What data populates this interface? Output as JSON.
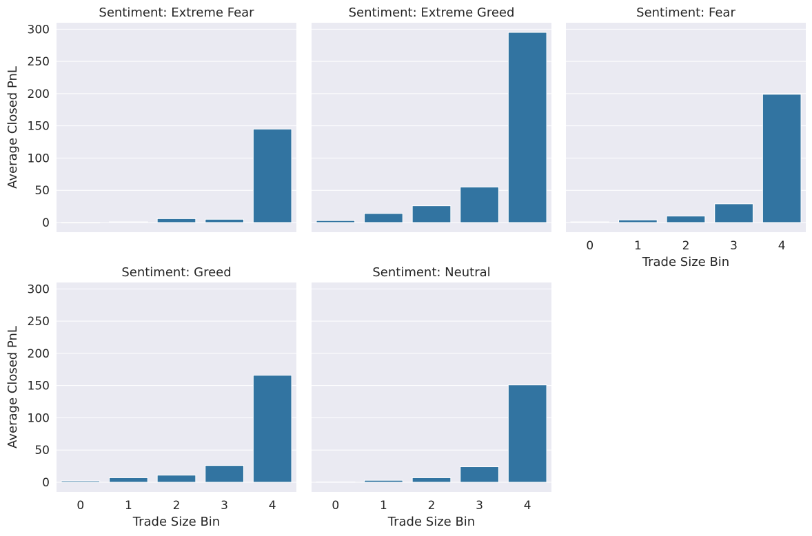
{
  "chart_data": {
    "type": "bar",
    "shared_y_axis_label": "Average Closed PnL",
    "shared_x_axis_label": "Trade Size Bin",
    "ylim": [
      -15,
      310
    ],
    "yticks": [
      0,
      50,
      100,
      150,
      200,
      250,
      300
    ],
    "categories": [
      "0",
      "1",
      "2",
      "3",
      "4"
    ],
    "grid": true,
    "bar_color": "#3274a1",
    "background_color": "#eaeaf2",
    "panels": [
      {
        "title": "Sentiment: Extreme Fear",
        "values": [
          -0.5,
          1,
          6,
          5,
          145
        ]
      },
      {
        "title": "Sentiment: Extreme Greed",
        "values": [
          3,
          14,
          26,
          55,
          295
        ]
      },
      {
        "title": "Sentiment: Fear",
        "values": [
          1,
          4,
          10,
          29,
          199
        ]
      },
      {
        "title": "Sentiment: Greed",
        "values": [
          2,
          7,
          11,
          26,
          166
        ]
      },
      {
        "title": "Sentiment: Neutral",
        "values": [
          0.5,
          3,
          7,
          24,
          151
        ]
      }
    ]
  }
}
